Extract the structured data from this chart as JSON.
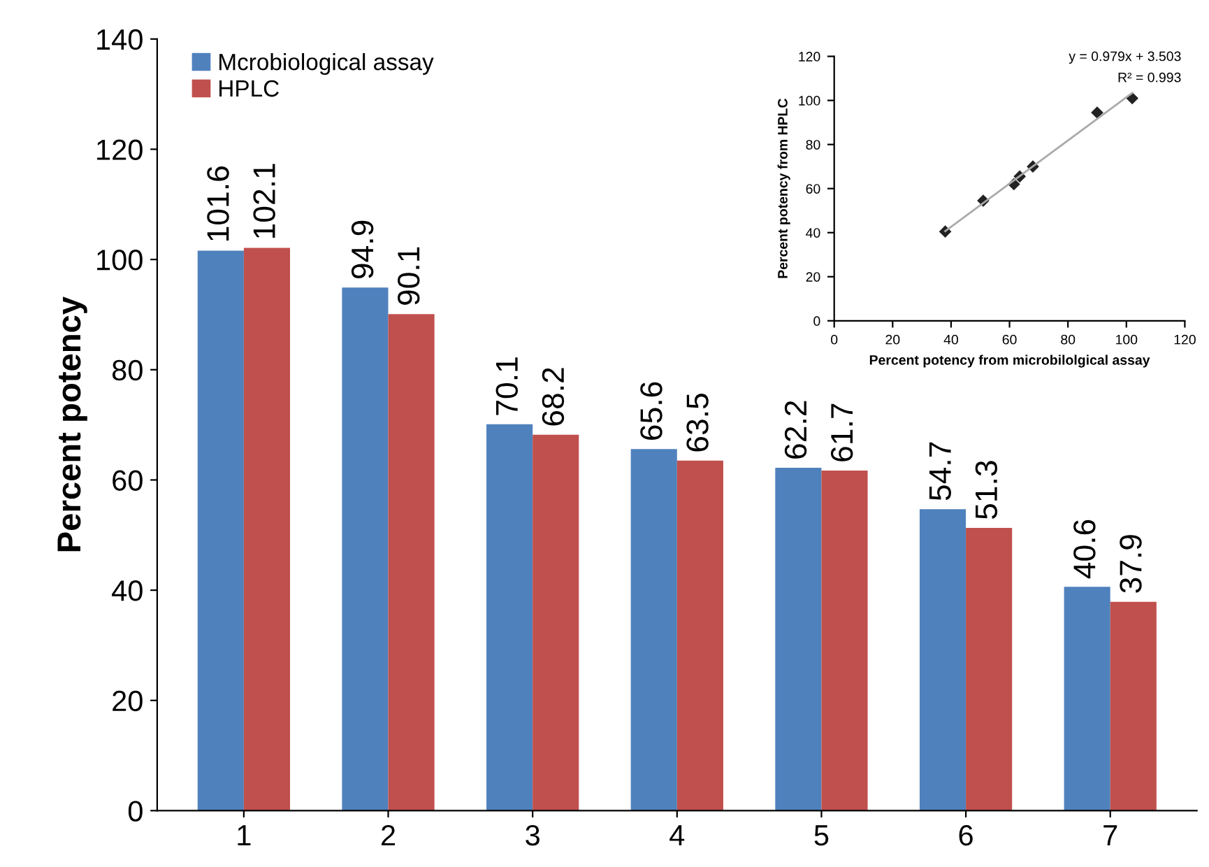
{
  "chart_data": [
    {
      "type": "bar",
      "ylabel": "Percent potency",
      "categories": [
        "1",
        "2",
        "3",
        "4",
        "5",
        "6",
        "7"
      ],
      "series": [
        {
          "name": "Mcrobiological assay",
          "color": "#4f81bd",
          "values": [
            101.6,
            94.9,
            70.1,
            65.6,
            62.2,
            54.7,
            40.6
          ]
        },
        {
          "name": "HPLC",
          "color": "#c0504d",
          "values": [
            102.1,
            90.1,
            68.2,
            63.5,
            61.7,
            51.3,
            37.9
          ]
        }
      ],
      "ylim": [
        0,
        140
      ],
      "yticks": [
        0,
        20,
        40,
        60,
        80,
        100,
        120,
        140
      ],
      "data_labels": true,
      "legend": "top left",
      "grid": false
    },
    {
      "type": "scatter",
      "xlabel": "Percent potency from microbilolgical assay",
      "ylabel": "Percent potency from HPLC",
      "series": [
        {
          "type": "scatter",
          "color": "#222222",
          "marker": "diamond",
          "x": [
            38,
            51,
            61.5,
            63.5,
            68,
            90,
            102
          ],
          "values": [
            40.5,
            54.5,
            62,
            65.5,
            70,
            94.5,
            101
          ]
        },
        {
          "type": "line",
          "color": "#aaaaaa",
          "x": [
            38,
            102
          ],
          "values": [
            40.7,
            103.4
          ]
        }
      ],
      "annotations": [
        "y = 0.979x + 3.503",
        "R² = 0.993"
      ],
      "xlim": [
        0,
        120
      ],
      "xticks": [
        0,
        20,
        40,
        60,
        80,
        100,
        120
      ],
      "ylim": [
        0,
        120
      ],
      "yticks": [
        0,
        20,
        40,
        60,
        80,
        100,
        120
      ],
      "grid": false
    }
  ]
}
